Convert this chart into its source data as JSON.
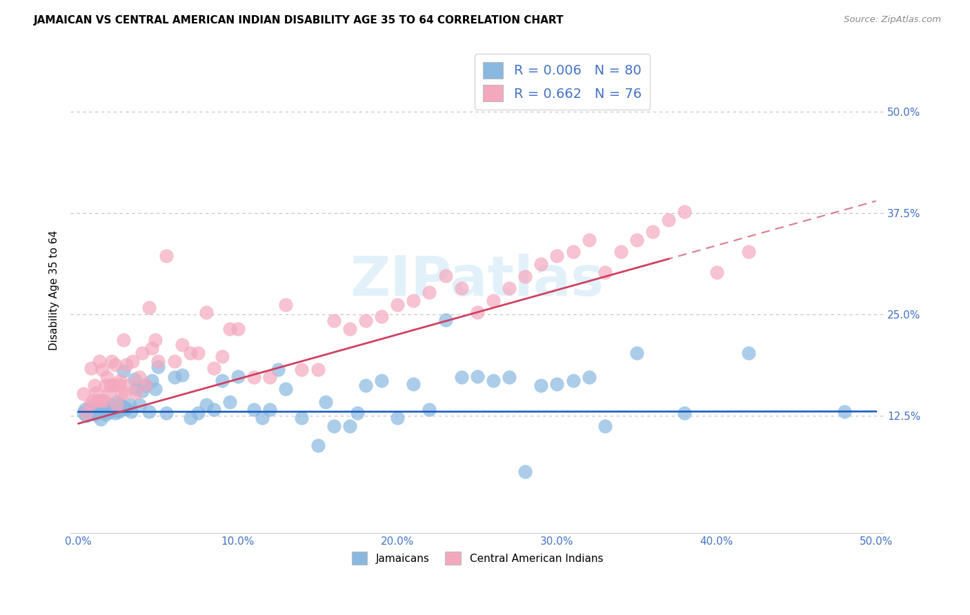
{
  "title": "JAMAICAN VS CENTRAL AMERICAN INDIAN DISABILITY AGE 35 TO 64 CORRELATION CHART",
  "source": "Source: ZipAtlas.com",
  "ylabel": "Disability Age 35 to 64",
  "ytick_positions": [
    0.125,
    0.25,
    0.375,
    0.5
  ],
  "ytick_labels": [
    "12.5%",
    "25.0%",
    "37.5%",
    "50.0%"
  ],
  "xtick_positions": [
    0.0,
    0.1,
    0.2,
    0.3,
    0.4,
    0.5
  ],
  "xtick_labels": [
    "0.0%",
    "10.0%",
    "20.0%",
    "30.0%",
    "40.0%",
    "50.0%"
  ],
  "blue_color": "#89b8e0",
  "pink_color": "#f4a8be",
  "blue_line_color": "#2060c0",
  "pink_line_color": "#d04060",
  "tick_color": "#4472c4",
  "legend_R1": "0.006",
  "legend_N1": "80",
  "legend_R2": "0.662",
  "legend_N2": "76",
  "watermark": "ZIPatlas",
  "legend_label1": "Jamaicans",
  "legend_label2": "Central American Indians",
  "blue_line_intercept": 0.1295,
  "blue_line_slope": 0.0008,
  "pink_line_intercept": 0.115,
  "pink_line_slope": 0.55,
  "blue_scatter_x": [
    0.003,
    0.004,
    0.005,
    0.006,
    0.007,
    0.008,
    0.009,
    0.01,
    0.011,
    0.012,
    0.013,
    0.014,
    0.015,
    0.016,
    0.017,
    0.018,
    0.019,
    0.02,
    0.021,
    0.022,
    0.023,
    0.024,
    0.025,
    0.026,
    0.027,
    0.028,
    0.029,
    0.03,
    0.032,
    0.033,
    0.035,
    0.036,
    0.038,
    0.04,
    0.042,
    0.044,
    0.046,
    0.048,
    0.05,
    0.055,
    0.06,
    0.065,
    0.07,
    0.075,
    0.08,
    0.085,
    0.09,
    0.095,
    0.1,
    0.11,
    0.115,
    0.12,
    0.125,
    0.13,
    0.14,
    0.15,
    0.155,
    0.16,
    0.17,
    0.175,
    0.18,
    0.19,
    0.2,
    0.21,
    0.22,
    0.23,
    0.24,
    0.25,
    0.26,
    0.27,
    0.28,
    0.29,
    0.3,
    0.31,
    0.32,
    0.33,
    0.35,
    0.38,
    0.42,
    0.48
  ],
  "blue_scatter_y": [
    0.128,
    0.132,
    0.125,
    0.13,
    0.135,
    0.127,
    0.131,
    0.126,
    0.133,
    0.128,
    0.134,
    0.12,
    0.138,
    0.13,
    0.126,
    0.135,
    0.129,
    0.131,
    0.137,
    0.133,
    0.128,
    0.142,
    0.13,
    0.138,
    0.132,
    0.18,
    0.135,
    0.133,
    0.138,
    0.13,
    0.17,
    0.158,
    0.138,
    0.155,
    0.162,
    0.13,
    0.168,
    0.158,
    0.185,
    0.128,
    0.172,
    0.175,
    0.122,
    0.128,
    0.138,
    0.132,
    0.168,
    0.142,
    0.173,
    0.132,
    0.122,
    0.132,
    0.182,
    0.158,
    0.122,
    0.088,
    0.142,
    0.112,
    0.112,
    0.128,
    0.162,
    0.168,
    0.122,
    0.164,
    0.132,
    0.243,
    0.172,
    0.173,
    0.168,
    0.172,
    0.056,
    0.162,
    0.164,
    0.168,
    0.172,
    0.112,
    0.202,
    0.128,
    0.202,
    0.13
  ],
  "pink_scatter_x": [
    0.003,
    0.005,
    0.007,
    0.008,
    0.009,
    0.01,
    0.011,
    0.012,
    0.013,
    0.014,
    0.015,
    0.016,
    0.017,
    0.018,
    0.019,
    0.02,
    0.021,
    0.022,
    0.023,
    0.024,
    0.025,
    0.026,
    0.027,
    0.028,
    0.029,
    0.03,
    0.032,
    0.034,
    0.036,
    0.038,
    0.04,
    0.042,
    0.044,
    0.046,
    0.048,
    0.05,
    0.055,
    0.06,
    0.065,
    0.07,
    0.075,
    0.08,
    0.085,
    0.09,
    0.095,
    0.1,
    0.11,
    0.12,
    0.13,
    0.14,
    0.15,
    0.16,
    0.17,
    0.18,
    0.19,
    0.2,
    0.21,
    0.22,
    0.23,
    0.24,
    0.25,
    0.26,
    0.27,
    0.28,
    0.29,
    0.3,
    0.31,
    0.32,
    0.33,
    0.34,
    0.35,
    0.36,
    0.37,
    0.38,
    0.4,
    0.42
  ],
  "pink_scatter_y": [
    0.152,
    0.128,
    0.138,
    0.183,
    0.143,
    0.162,
    0.153,
    0.143,
    0.192,
    0.143,
    0.182,
    0.143,
    0.162,
    0.172,
    0.153,
    0.162,
    0.192,
    0.163,
    0.188,
    0.138,
    0.163,
    0.168,
    0.153,
    0.218,
    0.153,
    0.188,
    0.163,
    0.192,
    0.153,
    0.172,
    0.202,
    0.163,
    0.258,
    0.208,
    0.218,
    0.192,
    0.322,
    0.192,
    0.212,
    0.202,
    0.202,
    0.252,
    0.183,
    0.198,
    0.232,
    0.232,
    0.172,
    0.172,
    0.262,
    0.182,
    0.182,
    0.242,
    0.232,
    0.242,
    0.247,
    0.262,
    0.267,
    0.277,
    0.298,
    0.282,
    0.252,
    0.267,
    0.282,
    0.297,
    0.312,
    0.322,
    0.327,
    0.342,
    0.302,
    0.327,
    0.342,
    0.352,
    0.367,
    0.377,
    0.302,
    0.327
  ]
}
